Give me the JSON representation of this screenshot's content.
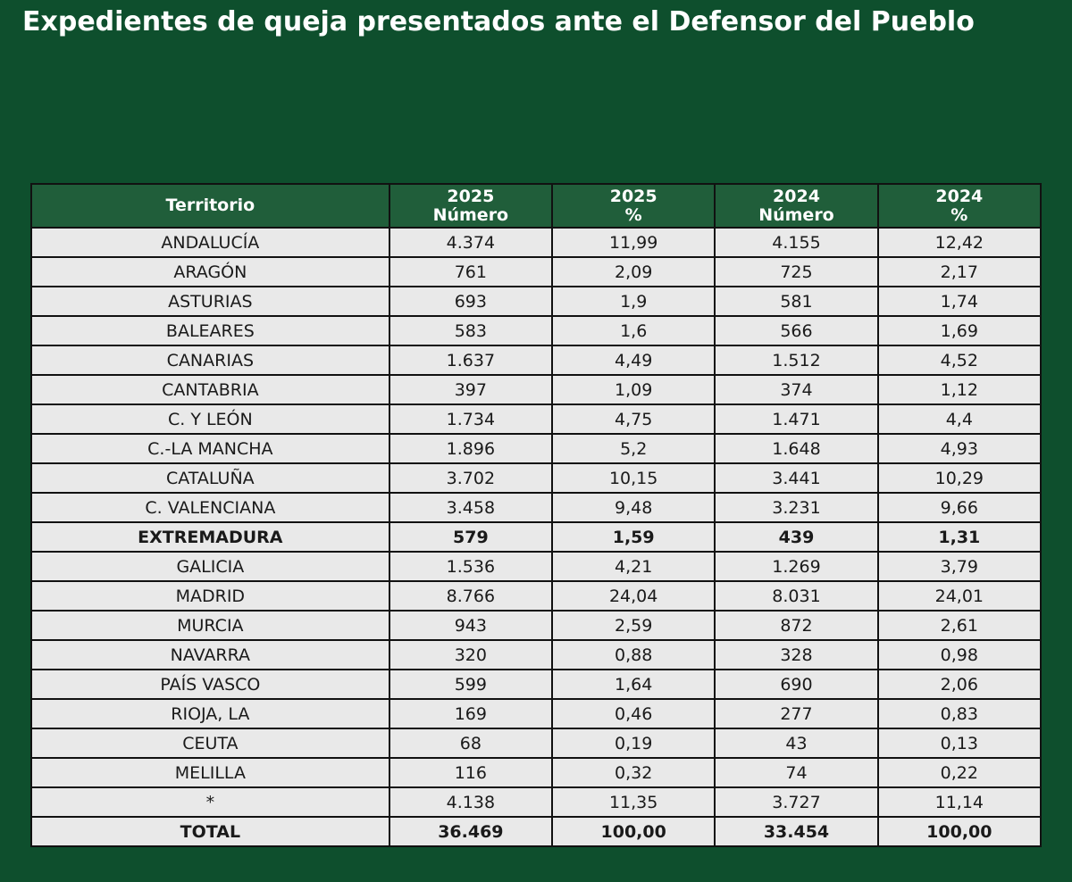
{
  "chart_data": {
    "type": "table",
    "title": "Expedientes de queja presentados ante el Defensor del Pueblo",
    "columns": [
      {
        "key": "territorio",
        "year": "",
        "label": "Territorio"
      },
      {
        "key": "n2025",
        "year": "2025",
        "label": "Número"
      },
      {
        "key": "p2025",
        "year": "2025",
        "label": "%"
      },
      {
        "key": "n2024",
        "year": "2024",
        "label": "Número"
      },
      {
        "key": "p2024",
        "year": "2024",
        "label": "%"
      }
    ],
    "rows": [
      {
        "territorio": "ANDALUCÍA",
        "n2025": "4.374",
        "p2025": "11,99",
        "n2024": "4.155",
        "p2024": "12,42",
        "bold": false
      },
      {
        "territorio": "ARAGÓN",
        "n2025": "761",
        "p2025": "2,09",
        "n2024": "725",
        "p2024": "2,17",
        "bold": false
      },
      {
        "territorio": "ASTURIAS",
        "n2025": "693",
        "p2025": "1,9",
        "n2024": "581",
        "p2024": "1,74",
        "bold": false
      },
      {
        "territorio": "BALEARES",
        "n2025": "583",
        "p2025": "1,6",
        "n2024": "566",
        "p2024": "1,69",
        "bold": false
      },
      {
        "territorio": "CANARIAS",
        "n2025": "1.637",
        "p2025": "4,49",
        "n2024": "1.512",
        "p2024": "4,52",
        "bold": false
      },
      {
        "territorio": "CANTABRIA",
        "n2025": "397",
        "p2025": "1,09",
        "n2024": "374",
        "p2024": "1,12",
        "bold": false
      },
      {
        "territorio": "C. Y LEÓN",
        "n2025": "1.734",
        "p2025": "4,75",
        "n2024": "1.471",
        "p2024": "4,4",
        "bold": false
      },
      {
        "territorio": "C.-LA MANCHA",
        "n2025": "1.896",
        "p2025": "5,2",
        "n2024": "1.648",
        "p2024": "4,93",
        "bold": false
      },
      {
        "territorio": "CATALUÑA",
        "n2025": "3.702",
        "p2025": "10,15",
        "n2024": "3.441",
        "p2024": "10,29",
        "bold": false
      },
      {
        "territorio": "C. VALENCIANA",
        "n2025": "3.458",
        "p2025": "9,48",
        "n2024": "3.231",
        "p2024": "9,66",
        "bold": false
      },
      {
        "territorio": "EXTREMADURA",
        "n2025": "579",
        "p2025": "1,59",
        "n2024": "439",
        "p2024": "1,31",
        "bold": true
      },
      {
        "territorio": "GALICIA",
        "n2025": "1.536",
        "p2025": "4,21",
        "n2024": "1.269",
        "p2024": "3,79",
        "bold": false
      },
      {
        "territorio": "MADRID",
        "n2025": "8.766",
        "p2025": "24,04",
        "n2024": "8.031",
        "p2024": "24,01",
        "bold": false
      },
      {
        "territorio": "MURCIA",
        "n2025": "943",
        "p2025": "2,59",
        "n2024": "872",
        "p2024": "2,61",
        "bold": false
      },
      {
        "territorio": "NAVARRA",
        "n2025": "320",
        "p2025": "0,88",
        "n2024": "328",
        "p2024": "0,98",
        "bold": false
      },
      {
        "territorio": "PAÍS VASCO",
        "n2025": "599",
        "p2025": "1,64",
        "n2024": "690",
        "p2024": "2,06",
        "bold": false
      },
      {
        "territorio": "RIOJA, LA",
        "n2025": "169",
        "p2025": "0,46",
        "n2024": "277",
        "p2024": "0,83",
        "bold": false
      },
      {
        "territorio": "CEUTA",
        "n2025": "68",
        "p2025": "0,19",
        "n2024": "43",
        "p2024": "0,13",
        "bold": false
      },
      {
        "territorio": "MELILLA",
        "n2025": "116",
        "p2025": "0,32",
        "n2024": "74",
        "p2024": "0,22",
        "bold": false
      },
      {
        "territorio": "*",
        "n2025": "4.138",
        "p2025": "11,35",
        "n2024": "3.727",
        "p2024": "11,14",
        "bold": false
      },
      {
        "territorio": "TOTAL",
        "n2025": "36.469",
        "p2025": "100,00",
        "n2024": "33.454",
        "p2024": "100,00",
        "bold": true
      }
    ]
  },
  "colors": {
    "background": "#0e4f2d",
    "header_bg": "#205e3a",
    "cell_bg": "#e9e9e9",
    "border": "#111111"
  }
}
